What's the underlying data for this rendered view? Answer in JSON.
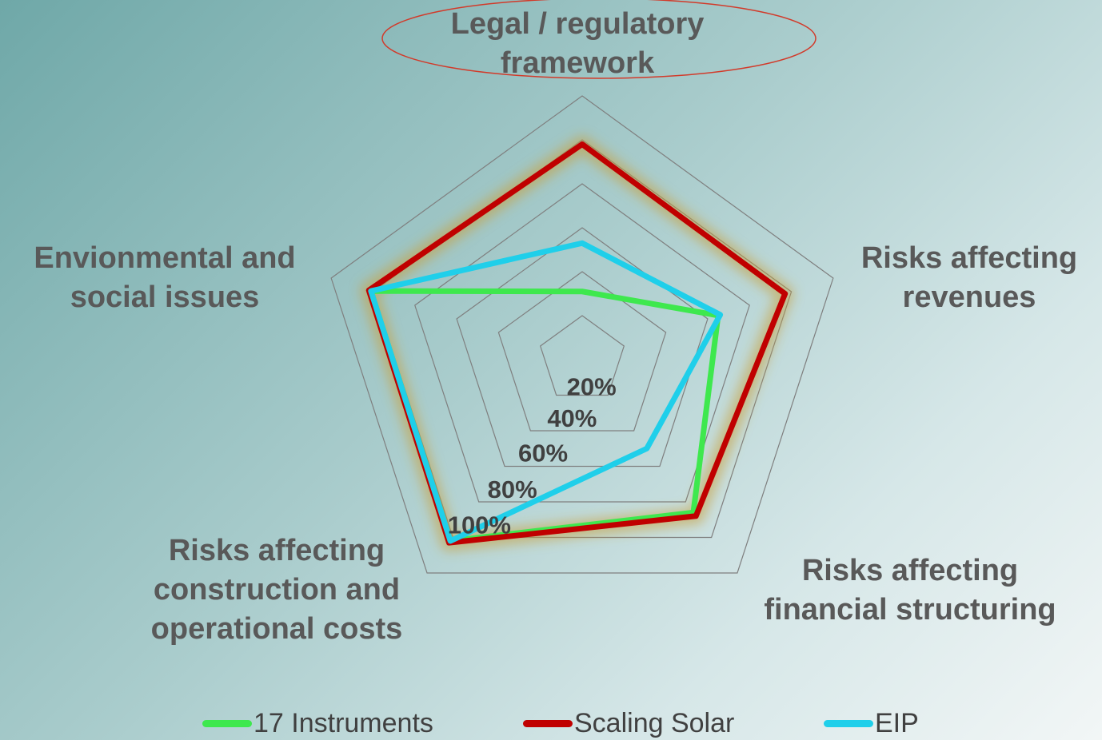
{
  "chart_data": {
    "type": "radar",
    "title": "",
    "categories": [
      "Legal / regulatory framework",
      "Risks affecting revenues",
      "Risks affecting financial structuring",
      "Risks affecting construction and operational costs",
      "Envionmental  and social issues"
    ],
    "category_lines": [
      [
        "Legal / regulatory",
        "framework"
      ],
      [
        "Risks affecting",
        "revenues"
      ],
      [
        "Risks affecting",
        "financial structuring"
      ],
      [
        "Risks affecting",
        "construction and",
        "operational costs"
      ],
      [
        "Envionmental  and",
        "social issues"
      ]
    ],
    "radial_ticks": [
      "20%",
      "40%",
      "60%",
      "80%",
      "100%"
    ],
    "radial_range": [
      0,
      1.2
    ],
    "grid_levels": [
      0.2,
      0.4,
      0.6,
      0.8,
      1.0,
      1.2
    ],
    "series": [
      {
        "name": "17 Instruments",
        "color": "#3ee84e",
        "values": [
          0.31,
          0.65,
          0.86,
          1.02,
          1.01
        ]
      },
      {
        "name": "Scaling Solar",
        "color": "#c00000",
        "values": [
          0.98,
          0.97,
          0.88,
          1.03,
          1.02
        ]
      },
      {
        "name": "EIP",
        "color": "#1fcfea",
        "values": [
          0.53,
          0.66,
          0.5,
          1.02,
          1.01
        ]
      }
    ],
    "highlight": "Legal / regulatory framework",
    "legend_position": "bottom"
  }
}
